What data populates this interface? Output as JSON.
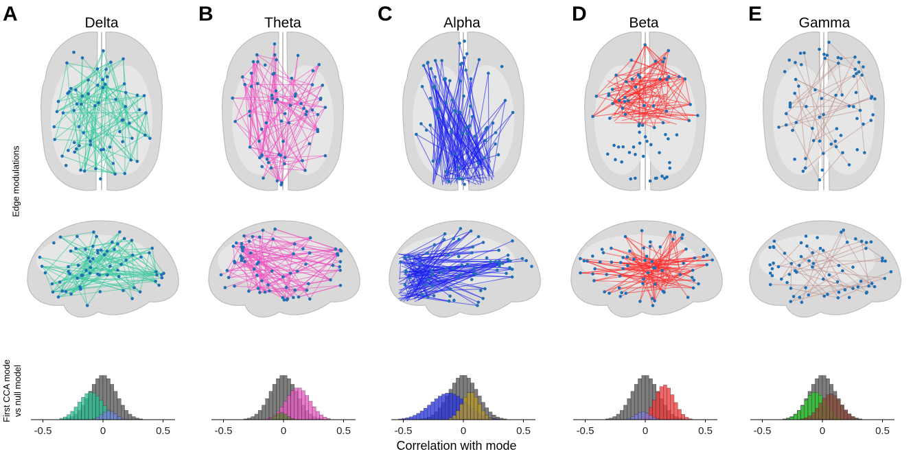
{
  "figure": {
    "row_label_edges": "Edge modulations",
    "row_label_cca_line1": "First CCA mode",
    "row_label_cca_line2": "vs null model",
    "x_axis_label": "Correlation with mode"
  },
  "panels": [
    {
      "letter": "A",
      "title": "Delta",
      "edge_color": "#2ec79a",
      "node_color": "#1f6fb5",
      "lateral_focus": "spread"
    },
    {
      "letter": "B",
      "title": "Theta",
      "edge_color": "#ee4fc0",
      "node_color": "#1f6fb5",
      "lateral_focus": "spread"
    },
    {
      "letter": "C",
      "title": "Alpha",
      "edge_color": "#1a1ff0",
      "node_color": "#1f6fb5",
      "lateral_focus": "posterior"
    },
    {
      "letter": "D",
      "title": "Beta",
      "edge_color": "#ff2a2a",
      "node_color": "#1f6fb5",
      "lateral_focus": "central"
    },
    {
      "letter": "E",
      "title": "Gamma",
      "edge_color": "#b98a86",
      "node_color": "#1f6fb5",
      "lateral_focus": "sparse"
    }
  ],
  "chart_data": [
    {
      "type": "bar",
      "title": "Delta",
      "xlabel": "Correlation with mode",
      "xlim": [
        -0.6,
        0.6
      ],
      "x_ticks": [
        "-0.5",
        "0",
        "0.5"
      ],
      "series": [
        {
          "color": "#777777",
          "center": 0.0,
          "spread": 0.11,
          "peak": 1.0
        },
        {
          "color": "#2bbf95",
          "center": -0.1,
          "spread": 0.1,
          "peak": 0.62
        },
        {
          "color": "#7a7fd8",
          "center": 0.05,
          "spread": 0.06,
          "peak": 0.2
        }
      ]
    },
    {
      "type": "bar",
      "title": "Theta",
      "xlabel": "Correlation with mode",
      "xlim": [
        -0.6,
        0.6
      ],
      "x_ticks": [
        "-0.5",
        "0",
        "0.5"
      ],
      "series": [
        {
          "color": "#777777",
          "center": 0.0,
          "spread": 0.11,
          "peak": 1.0
        },
        {
          "color": "#e85bc4",
          "center": 0.12,
          "spread": 0.1,
          "peak": 0.72
        },
        {
          "color": "#5d7f3a",
          "center": -0.02,
          "spread": 0.05,
          "peak": 0.16
        }
      ]
    },
    {
      "type": "bar",
      "title": "Alpha",
      "xlabel": "Correlation with mode",
      "xlim": [
        -0.6,
        0.6
      ],
      "x_ticks": [
        "-0.5",
        "0",
        "0.5"
      ],
      "series": [
        {
          "color": "#777777",
          "center": 0.0,
          "spread": 0.12,
          "peak": 1.0
        },
        {
          "color": "#2a35e0",
          "center": -0.12,
          "spread": 0.15,
          "peak": 0.6
        },
        {
          "color": "#b89a2a",
          "center": 0.06,
          "spread": 0.07,
          "peak": 0.62
        }
      ]
    },
    {
      "type": "bar",
      "title": "Beta",
      "xlabel": "Correlation with mode",
      "xlim": [
        -0.6,
        0.6
      ],
      "x_ticks": [
        "-0.5",
        "0",
        "0.5"
      ],
      "series": [
        {
          "color": "#777777",
          "center": 0.0,
          "spread": 0.11,
          "peak": 1.0
        },
        {
          "color": "#f23a3a",
          "center": 0.16,
          "spread": 0.08,
          "peak": 0.78
        },
        {
          "color": "#7a7fd8",
          "center": -0.02,
          "spread": 0.06,
          "peak": 0.18
        }
      ]
    },
    {
      "type": "bar",
      "title": "Gamma",
      "xlabel": "Correlation with mode",
      "xlim": [
        -0.6,
        0.6
      ],
      "x_ticks": [
        "-0.5",
        "0",
        "0.5"
      ],
      "series": [
        {
          "color": "#777777",
          "center": 0.0,
          "spread": 0.11,
          "peak": 1.0
        },
        {
          "color": "#2ecb2e",
          "center": -0.06,
          "spread": 0.09,
          "peak": 0.62
        },
        {
          "color": "#8b4a3a",
          "center": 0.07,
          "spread": 0.09,
          "peak": 0.58
        }
      ]
    }
  ]
}
